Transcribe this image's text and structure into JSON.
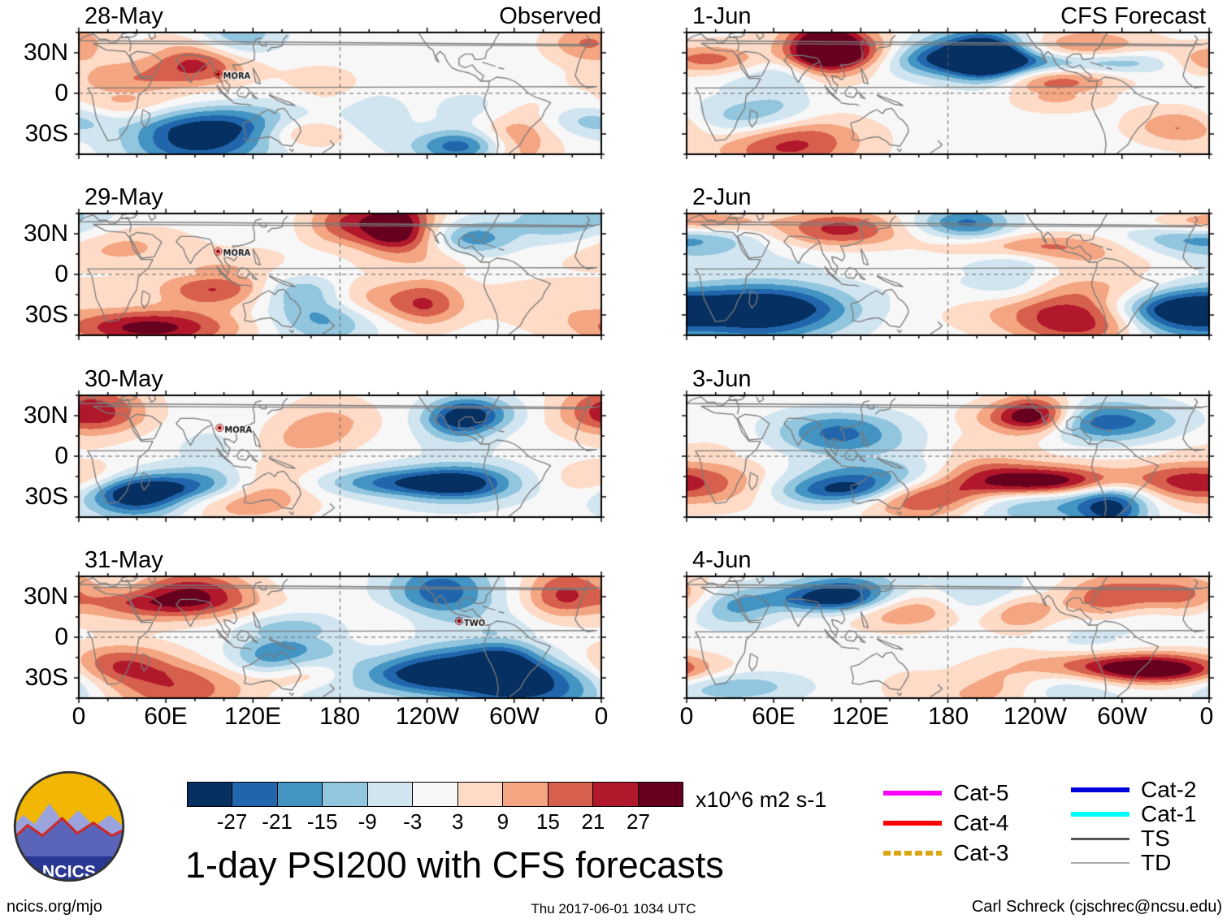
{
  "chart_data": {
    "type": "heatmap",
    "title": "1-day PSI200 with CFS forecasts",
    "column_titles": [
      "Observed",
      "CFS Forecast"
    ],
    "panels": [
      {
        "date": "28-May",
        "column": 0,
        "storms": [
          {
            "name": "MORA",
            "lon": 96,
            "lat": 14
          }
        ]
      },
      {
        "date": "29-May",
        "column": 0,
        "storms": [
          {
            "name": "MORA",
            "lon": 96,
            "lat": 17
          }
        ]
      },
      {
        "date": "30-May",
        "column": 0,
        "storms": [
          {
            "name": "MORA",
            "lon": 97,
            "lat": 21
          }
        ]
      },
      {
        "date": "31-May",
        "column": 0,
        "storms": [
          {
            "name": "TWO",
            "lon": 262,
            "lat": 12
          }
        ]
      },
      {
        "date": "1-Jun",
        "column": 1,
        "storms": []
      },
      {
        "date": "2-Jun",
        "column": 1,
        "storms": []
      },
      {
        "date": "3-Jun",
        "column": 1,
        "storms": []
      },
      {
        "date": "4-Jun",
        "column": 1,
        "storms": []
      }
    ],
    "x_tick_labels": [
      "0",
      "60E",
      "120E",
      "180",
      "120W",
      "60W",
      "0"
    ],
    "y_tick_labels": [
      "30N",
      "0",
      "30S"
    ],
    "lon_range": [
      0,
      360
    ],
    "lat_range": [
      -45,
      45
    ],
    "grid": {
      "equator_dashed": true,
      "dateline_dashed": true
    },
    "colorbar": {
      "tick_labels": [
        "-27",
        "-21",
        "-15",
        "-9",
        "-3",
        "3",
        "9",
        "15",
        "21",
        "27"
      ],
      "colors": [
        "#053061",
        "#2166ac",
        "#4393c3",
        "#92c5de",
        "#d1e5f0",
        "#f7f7f7",
        "#fddbc7",
        "#f4a582",
        "#d6604d",
        "#b2182b",
        "#67001f"
      ],
      "units_label": "x10^6 m2 s-1"
    },
    "storm_legend": [
      {
        "label": "Cat-5",
        "color": "#ff00ff",
        "thickness": 6,
        "dash": false
      },
      {
        "label": "Cat-4",
        "color": "#ff0000",
        "thickness": 6,
        "dash": false
      },
      {
        "label": "Cat-3",
        "color": "#dba514",
        "thickness": 6,
        "dash": true
      },
      {
        "label": "Cat-2",
        "color": "#0000dd",
        "thickness": 6,
        "dash": false
      },
      {
        "label": "Cat-1",
        "color": "#00ffff",
        "thickness": 6,
        "dash": false
      },
      {
        "label": "TS",
        "color": "#555555",
        "thickness": 3,
        "dash": false
      },
      {
        "label": "TD",
        "color": "#aaaaaa",
        "thickness": 2,
        "dash": false
      }
    ]
  },
  "logo_text": "NCICS",
  "footer": {
    "left": "ncics.org/mjo",
    "center": "Thu 2017-06-01 1034 UTC",
    "right": "Carl Schreck (cjschrec@ncsu.edu)"
  }
}
